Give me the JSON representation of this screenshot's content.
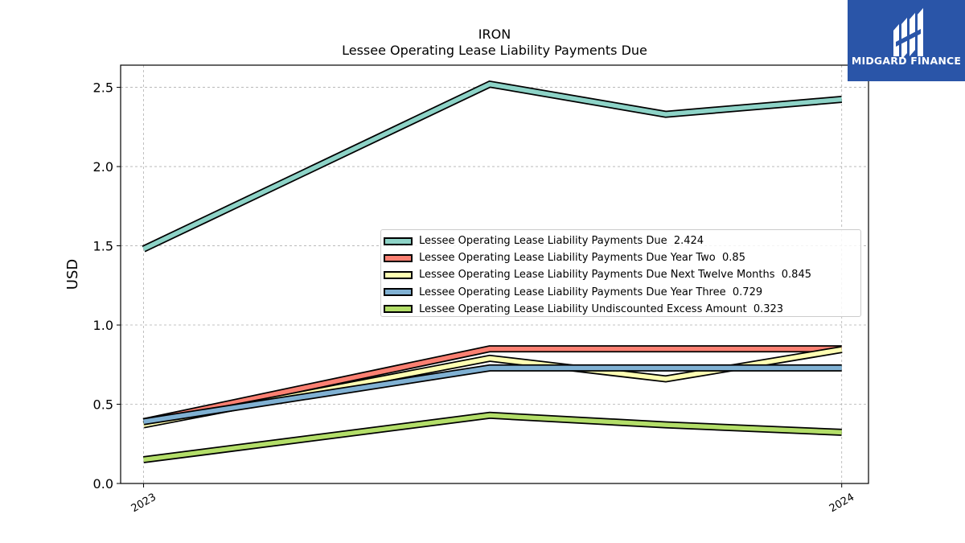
{
  "chart_data": {
    "type": "line",
    "title": "IRON",
    "subtitle": "Lessee Operating Lease Liability Payments Due",
    "xlabel": "",
    "ylabel": "USD",
    "x": [
      "2023-01-01",
      "2023-07-01",
      "2023-10-01",
      "2024-01-01"
    ],
    "xlim": [
      "2022-12-20",
      "2024-01-15"
    ],
    "x_ticks": [
      {
        "label": "2023",
        "date": "2023-01-01"
      },
      {
        "label": "2024",
        "date": "2024-01-01"
      }
    ],
    "ylim": [
      0,
      2.64
    ],
    "y_ticks": [
      "0.0",
      "0.5",
      "1.0",
      "1.5",
      "2.0",
      "2.5"
    ],
    "grid": true,
    "legend_position": "center-right",
    "series": [
      {
        "name": "Lessee Operating Lease Liability Payments Due",
        "legend_value": "2.424",
        "color": "#8dd3c7",
        "values": [
          1.48,
          2.52,
          2.33,
          2.424
        ]
      },
      {
        "name": "Lessee Operating Lease Liability Payments Due Year Two",
        "legend_value": "0.85",
        "color": "#fb8072",
        "values": [
          0.39,
          0.85,
          0.85,
          0.85
        ]
      },
      {
        "name": "Lessee Operating Lease Liability Payments Due Next Twelve Months",
        "legend_value": "0.845",
        "color": "#ffffb3",
        "values": [
          0.37,
          0.79,
          0.66,
          0.845
        ]
      },
      {
        "name": "Lessee Operating Lease Liability Payments Due Year Three",
        "legend_value": "0.729",
        "color": "#80b1d3",
        "values": [
          0.39,
          0.729,
          0.729,
          0.729
        ]
      },
      {
        "name": "Lessee Operating Lease Liability Undiscounted Excess Amount",
        "legend_value": "0.323",
        "color": "#b3de69",
        "values": [
          0.15,
          0.43,
          0.37,
          0.323
        ]
      }
    ]
  },
  "logo": {
    "text": "MIDGARD FINANCE"
  }
}
